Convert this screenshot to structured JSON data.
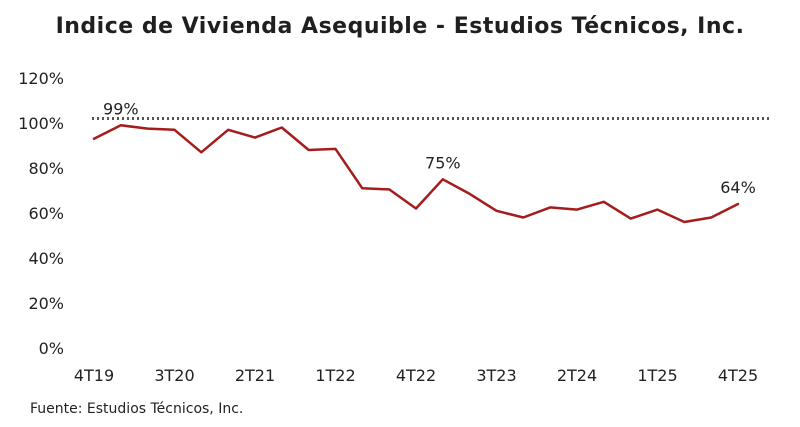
{
  "chart_data": {
    "type": "line",
    "title": "Indice de Vivienda Asequible - Estudios Técnicos, Inc.",
    "source": "Fuente: Estudios Técnicos, Inc.",
    "xlabel": "",
    "ylabel": "",
    "ylim": [
      0,
      120
    ],
    "y_ticks": [
      "0%",
      "20%",
      "40%",
      "60%",
      "80%",
      "100%",
      "120%"
    ],
    "y_tick_values": [
      0,
      20,
      40,
      60,
      80,
      100,
      120
    ],
    "x_tick_labels": [
      "4T19",
      "3T20",
      "2T21",
      "1T22",
      "4T22",
      "3T23",
      "2T24",
      "1T25",
      "4T25"
    ],
    "x_tick_indices": [
      0,
      3,
      6,
      9,
      12,
      15,
      18,
      21,
      24
    ],
    "categories": [
      "4T19",
      "1T20",
      "2T20",
      "3T20",
      "4T20",
      "1T21",
      "2T21",
      "3T21",
      "4T21",
      "1T22",
      "2T22",
      "3T22",
      "4T22",
      "1T23",
      "2T23",
      "3T23",
      "4T23",
      "1T24",
      "2T24",
      "3T24",
      "4T24",
      "1T25",
      "2T25",
      "3T25",
      "4T25"
    ],
    "series": [
      {
        "color": "#a51c1c",
        "values": [
          93,
          99,
          97.5,
          97,
          87,
          97,
          93.5,
          98,
          88,
          88.5,
          71,
          70.5,
          62,
          75,
          68.5,
          61,
          58,
          62.5,
          61.5,
          65,
          57.5,
          61.5,
          56,
          58,
          64
        ]
      }
    ],
    "reference_line": {
      "value": 102,
      "style": "dotted",
      "color": "#555555"
    },
    "annotations": [
      {
        "index": 1,
        "text": "99%"
      },
      {
        "index": 13,
        "text": "75%"
      },
      {
        "index": 24,
        "text": "64%"
      }
    ],
    "grid": false,
    "legend": "none"
  }
}
